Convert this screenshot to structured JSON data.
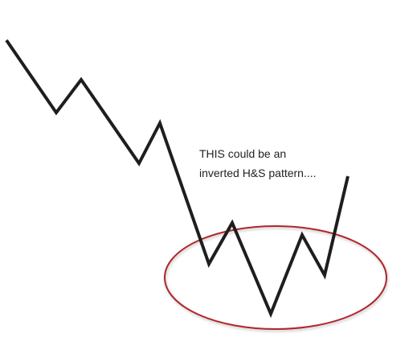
{
  "annotation": {
    "lines": [
      "THIS could be an",
      "inverted H&S pattern...."
    ]
  }
}
